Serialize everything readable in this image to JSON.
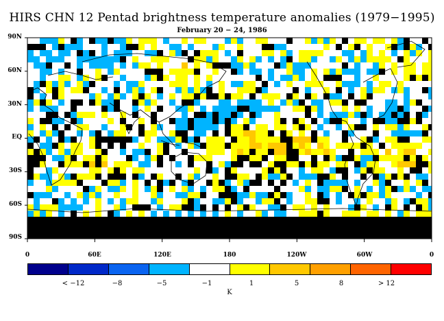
{
  "title": "HIRS CHN 12 Pentad brightness temperature anomalies (1979−1995)",
  "subtitle": "February 20 − 24, 1986",
  "map": {
    "projection": "equirectangular",
    "lon_range": [
      0,
      360
    ],
    "lat_range": [
      -90,
      90
    ],
    "y_axis_labels": [
      "90N",
      "60N",
      "30N",
      "EQ",
      "30S",
      "60S",
      "90S"
    ],
    "x_axis_labels": [
      "0",
      "60E",
      "120E",
      "180",
      "120W",
      "60W",
      "0"
    ],
    "missing_data_color": "#000000",
    "coastline_color": "#000000"
  },
  "colorbar": {
    "colors": [
      "#00008c",
      "#0028c8",
      "#0a64f0",
      "#00b4ff",
      "#ffffff",
      "#ffff00",
      "#ffc800",
      "#ffa000",
      "#ff6400",
      "#ff0000"
    ],
    "labels": [
      "< −12",
      "−8",
      "−5",
      "−1",
      "1",
      "5",
      "8",
      "> 12"
    ],
    "unit": "K"
  }
}
